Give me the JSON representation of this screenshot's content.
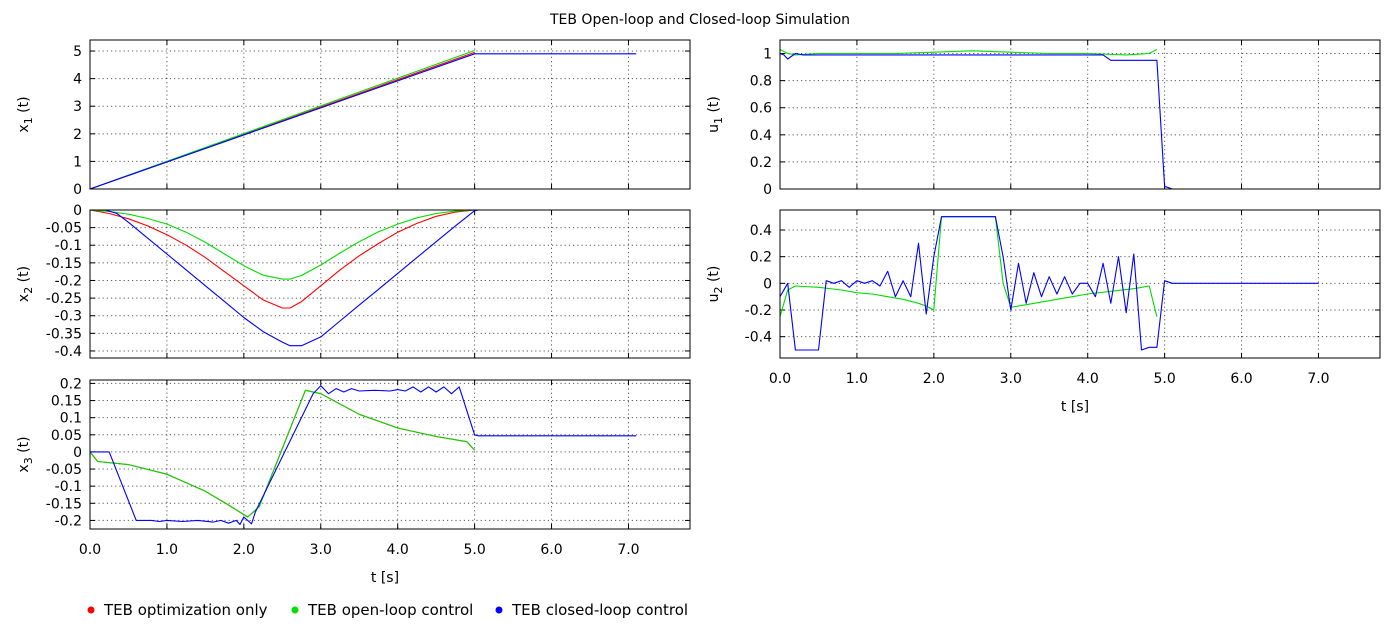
{
  "title": "TEB Open-loop and Closed-loop Simulation",
  "colors": {
    "opt": "#ff0000",
    "open": "#00dd00",
    "closed": "#0000ff"
  },
  "legend": [
    {
      "key": "opt",
      "label": "TEB optimization only"
    },
    {
      "key": "open",
      "label": "TEB open-loop control"
    },
    {
      "key": "closed",
      "label": "TEB closed-loop control"
    }
  ],
  "chart_data": [
    {
      "id": "x1",
      "type": "line",
      "ylabel_main": "x",
      "ylabel_sub": "1",
      "ylabel_tail": " (t)",
      "xlim": [
        0,
        7.8
      ],
      "ylim": [
        0,
        5.4
      ],
      "yticks": [
        0,
        1,
        2,
        3,
        4,
        5
      ],
      "ytick_labels": [
        "0",
        "1",
        "2",
        "3",
        "4",
        "5"
      ],
      "xticks": [
        0,
        1,
        2,
        3,
        4,
        5,
        6,
        7
      ],
      "xtick_labels": [],
      "xlabel": "",
      "series": [
        {
          "key": "opt",
          "x": [
            0,
            5.0
          ],
          "y": [
            0,
            4.95
          ]
        },
        {
          "key": "open",
          "x": [
            0,
            5.0
          ],
          "y": [
            0,
            5.02
          ]
        },
        {
          "key": "closed",
          "x": [
            0,
            5.0,
            5.05,
            7.1
          ],
          "y": [
            0,
            4.9,
            4.9,
            4.9
          ]
        }
      ]
    },
    {
      "id": "x2",
      "type": "line",
      "ylabel_main": "x",
      "ylabel_sub": "2",
      "ylabel_tail": " (t)",
      "xlim": [
        0,
        7.8
      ],
      "ylim": [
        -0.42,
        0
      ],
      "yticks": [
        0,
        -0.05,
        -0.1,
        -0.15,
        -0.2,
        -0.25,
        -0.3,
        -0.35,
        -0.4
      ],
      "ytick_labels": [
        "0",
        "-0.05",
        "-0.1",
        "-0.15",
        "-0.2",
        "-0.25",
        "-0.3",
        "-0.35",
        "-0.4"
      ],
      "xticks": [
        0,
        1,
        2,
        3,
        4,
        5,
        6,
        7
      ],
      "xtick_labels": [],
      "xlabel": "",
      "series": [
        {
          "key": "opt",
          "x": [
            0,
            0.25,
            0.5,
            0.75,
            1.0,
            1.25,
            1.5,
            1.75,
            2.0,
            2.25,
            2.5,
            2.6,
            2.75,
            3.0,
            3.25,
            3.5,
            3.75,
            4.0,
            4.25,
            4.5,
            4.75,
            5.0
          ],
          "y": [
            0,
            -0.01,
            -0.025,
            -0.045,
            -0.07,
            -0.1,
            -0.135,
            -0.175,
            -0.215,
            -0.255,
            -0.278,
            -0.278,
            -0.26,
            -0.215,
            -0.17,
            -0.13,
            -0.095,
            -0.063,
            -0.038,
            -0.018,
            -0.006,
            0
          ]
        },
        {
          "key": "open",
          "x": [
            0,
            0.25,
            0.5,
            0.75,
            1.0,
            1.25,
            1.5,
            1.75,
            2.0,
            2.25,
            2.5,
            2.6,
            2.75,
            3.0,
            3.25,
            3.5,
            3.75,
            4.0,
            4.25,
            4.5,
            4.75,
            5.0
          ],
          "y": [
            0,
            -0.004,
            -0.012,
            -0.024,
            -0.04,
            -0.063,
            -0.092,
            -0.125,
            -0.158,
            -0.185,
            -0.196,
            -0.196,
            -0.186,
            -0.156,
            -0.122,
            -0.09,
            -0.062,
            -0.04,
            -0.022,
            -0.01,
            -0.003,
            0
          ]
        },
        {
          "key": "closed",
          "x": [
            0,
            0.2,
            0.35,
            0.5,
            0.75,
            1.0,
            1.25,
            1.5,
            1.75,
            2.0,
            2.25,
            2.5,
            2.6,
            2.75,
            3.0,
            3.25,
            3.5,
            3.75,
            4.0,
            4.25,
            4.5,
            4.75,
            5.0,
            5.05,
            7.1
          ],
          "y": [
            0,
            0,
            -0.01,
            -0.035,
            -0.08,
            -0.125,
            -0.17,
            -0.215,
            -0.26,
            -0.305,
            -0.345,
            -0.375,
            -0.385,
            -0.385,
            -0.36,
            -0.315,
            -0.27,
            -0.225,
            -0.18,
            -0.135,
            -0.09,
            -0.045,
            -0.002,
            0,
            0
          ]
        }
      ]
    },
    {
      "id": "x3",
      "type": "line",
      "ylabel_main": "x",
      "ylabel_sub": "3",
      "ylabel_tail": " (t)",
      "xlim": [
        0,
        7.8
      ],
      "ylim": [
        -0.225,
        0.21
      ],
      "yticks": [
        0.2,
        0.15,
        0.1,
        0.05,
        0,
        -0.05,
        -0.1,
        -0.15,
        -0.2
      ],
      "ytick_labels": [
        "0.2",
        "0.15",
        "0.1",
        "0.05",
        "0",
        "-0.05",
        "-0.1",
        "-0.15",
        "-0.2"
      ],
      "xticks": [
        0,
        1,
        2,
        3,
        4,
        5,
        6,
        7
      ],
      "xtick_labels": [
        "0.0",
        "1.0",
        "2.0",
        "3.0",
        "4.0",
        "5.0",
        "6.0",
        "7.0"
      ],
      "xlabel": "t [s]",
      "series": [
        {
          "key": "opt",
          "x": [
            0,
            0.1,
            0.5,
            1.0,
            1.5,
            1.8,
            2.05,
            2.2,
            2.8,
            3.0,
            3.5,
            4.0,
            4.5,
            4.9,
            5.0
          ],
          "y": [
            0,
            -0.028,
            -0.037,
            -0.065,
            -0.115,
            -0.155,
            -0.19,
            -0.16,
            0.18,
            0.17,
            0.11,
            0.07,
            0.045,
            0.03,
            0.005
          ]
        },
        {
          "key": "open",
          "x": [
            0,
            0.1,
            0.5,
            1.0,
            1.5,
            1.8,
            2.05,
            2.2,
            2.8,
            3.0,
            3.5,
            4.0,
            4.5,
            4.9,
            5.0
          ],
          "y": [
            0,
            -0.028,
            -0.037,
            -0.065,
            -0.115,
            -0.155,
            -0.19,
            -0.16,
            0.18,
            0.17,
            0.11,
            0.07,
            0.045,
            0.03,
            0.005
          ]
        },
        {
          "key": "closed",
          "x": [
            0,
            0.1,
            0.2,
            0.25,
            0.6,
            0.8,
            0.9,
            1.0,
            1.2,
            1.4,
            1.6,
            1.7,
            1.8,
            1.9,
            1.95,
            2.0,
            2.05,
            2.1,
            2.15,
            2.9,
            3.0,
            3.1,
            3.2,
            3.3,
            3.4,
            3.5,
            3.7,
            3.9,
            4.0,
            4.1,
            4.2,
            4.3,
            4.4,
            4.5,
            4.6,
            4.7,
            4.8,
            5.0,
            5.05,
            7.1
          ],
          "y": [
            0,
            0,
            0,
            0,
            -0.2,
            -0.2,
            -0.203,
            -0.2,
            -0.203,
            -0.2,
            -0.205,
            -0.2,
            -0.208,
            -0.2,
            -0.212,
            -0.19,
            -0.2,
            -0.21,
            -0.175,
            0.17,
            0.193,
            0.17,
            0.185,
            0.175,
            0.185,
            0.178,
            0.18,
            0.178,
            0.182,
            0.178,
            0.19,
            0.175,
            0.19,
            0.175,
            0.19,
            0.17,
            0.19,
            0.05,
            0.047,
            0.047
          ]
        }
      ]
    },
    {
      "id": "u1",
      "type": "line",
      "ylabel_main": "u",
      "ylabel_sub": "1",
      "ylabel_tail": " (t)",
      "xlim": [
        0,
        7.8
      ],
      "ylim": [
        0,
        1.1
      ],
      "yticks": [
        0,
        0.2,
        0.4,
        0.6,
        0.8,
        1
      ],
      "ytick_labels": [
        "0",
        "0.2",
        "0.4",
        "0.6",
        "0.8",
        "1"
      ],
      "xticks": [
        0,
        1,
        2,
        3,
        4,
        5,
        6,
        7
      ],
      "xtick_labels": [],
      "xlabel": "",
      "series": [
        {
          "key": "open",
          "x": [
            0,
            0.1,
            0.2,
            0.5,
            1.0,
            1.5,
            2.0,
            2.5,
            3.0,
            3.5,
            4.0,
            4.5,
            4.8,
            4.9
          ],
          "y": [
            1.03,
            1.0,
            0.99,
            1.0,
            1.0,
            1.0,
            1.01,
            1.02,
            1.01,
            1.0,
            1.0,
            0.99,
            1.0,
            1.03
          ]
        },
        {
          "key": "closed",
          "x": [
            0,
            0.05,
            0.1,
            0.2,
            0.3,
            0.5,
            1.0,
            1.5,
            2.0,
            2.5,
            3.0,
            3.5,
            4.0,
            4.2,
            4.3,
            4.4,
            4.9,
            5.0,
            5.1
          ],
          "y": [
            1.0,
            0.99,
            0.96,
            1.0,
            0.99,
            0.99,
            0.99,
            0.99,
            0.99,
            0.99,
            0.99,
            0.99,
            0.99,
            0.99,
            0.95,
            0.95,
            0.95,
            0.02,
            0.0
          ]
        }
      ]
    },
    {
      "id": "u2",
      "type": "line",
      "ylabel_main": "u",
      "ylabel_sub": "2",
      "ylabel_tail": " (t)",
      "xlim": [
        0,
        7.8
      ],
      "ylim": [
        -0.56,
        0.55
      ],
      "yticks": [
        0.4,
        0.2,
        0,
        -0.2,
        -0.4
      ],
      "ytick_labels": [
        "0.4",
        "0.2",
        "0",
        "-0.2",
        "-0.4"
      ],
      "xticks": [
        0,
        1,
        2,
        3,
        4,
        5,
        6,
        7
      ],
      "xtick_labels": [
        "0.0",
        "1.0",
        "2.0",
        "3.0",
        "4.0",
        "5.0",
        "6.0",
        "7.0"
      ],
      "xlabel": "t [s]",
      "series": [
        {
          "key": "open",
          "x": [
            0,
            0.1,
            0.2,
            0.5,
            0.8,
            1.0,
            1.2,
            1.4,
            1.6,
            1.8,
            1.9,
            2.0,
            2.1,
            2.8,
            2.9,
            3.0,
            3.2,
            3.5,
            3.8,
            4.0,
            4.3,
            4.6,
            4.8,
            4.9
          ],
          "y": [
            -0.25,
            -0.05,
            -0.02,
            -0.03,
            -0.05,
            -0.07,
            -0.08,
            -0.1,
            -0.12,
            -0.15,
            -0.17,
            -0.2,
            0.5,
            0.5,
            0.0,
            -0.18,
            -0.16,
            -0.13,
            -0.1,
            -0.08,
            -0.06,
            -0.04,
            -0.02,
            -0.25
          ]
        },
        {
          "key": "closed",
          "x": [
            0,
            0.1,
            0.2,
            0.5,
            0.6,
            0.7,
            0.8,
            0.9,
            1.0,
            1.1,
            1.2,
            1.3,
            1.4,
            1.5,
            1.6,
            1.7,
            1.8,
            1.9,
            2.0,
            2.1,
            2.2,
            2.8,
            2.9,
            3.0,
            3.1,
            3.2,
            3.3,
            3.4,
            3.5,
            3.6,
            3.7,
            3.8,
            3.9,
            4.0,
            4.1,
            4.2,
            4.3,
            4.4,
            4.5,
            4.6,
            4.7,
            4.8,
            4.9,
            5.0,
            5.1,
            7.0
          ],
          "y": [
            -0.1,
            0.0,
            -0.5,
            -0.5,
            0.02,
            0.0,
            0.02,
            -0.03,
            0.02,
            0.0,
            0.02,
            -0.02,
            0.09,
            -0.1,
            0.02,
            -0.1,
            0.3,
            -0.23,
            0.2,
            0.5,
            0.5,
            0.5,
            0.2,
            -0.2,
            0.15,
            -0.15,
            0.08,
            -0.1,
            0.05,
            -0.08,
            0.05,
            -0.08,
            0.0,
            0.0,
            -0.1,
            0.15,
            -0.15,
            0.2,
            -0.22,
            0.22,
            -0.5,
            -0.48,
            -0.48,
            0.02,
            0.0,
            0.0
          ]
        }
      ]
    }
  ]
}
